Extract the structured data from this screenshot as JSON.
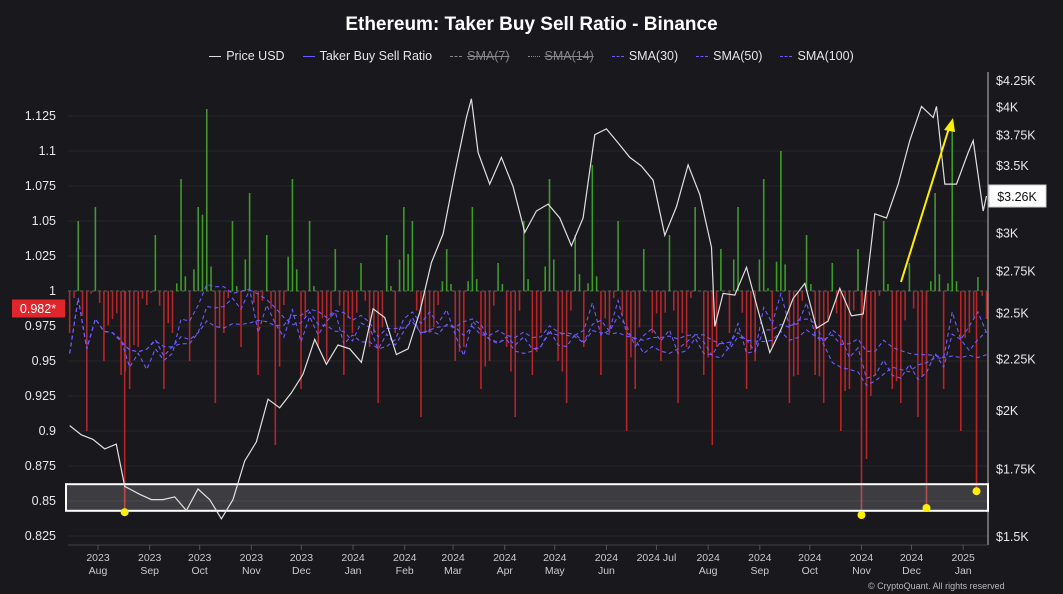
{
  "chart_data": {
    "type": "bar+line",
    "title": "Ethereum: Taker Buy Sell Ratio - Binance",
    "legend": [
      {
        "name": "Price USD",
        "color": "#dddddd",
        "style": "solid",
        "visible": true
      },
      {
        "name": "Taker Buy Sell Ratio",
        "color": "#6b5cff",
        "style": "solid",
        "visible": true
      },
      {
        "name": "SMA(7)",
        "color": "#888888",
        "style": "dashed",
        "visible": false
      },
      {
        "name": "SMA(14)",
        "color": "#888888",
        "style": "dotted",
        "visible": false
      },
      {
        "name": "SMA(30)",
        "color": "#6b5cff",
        "style": "dashed",
        "visible": true
      },
      {
        "name": "SMA(50)",
        "color": "#6b5cff",
        "style": "dashed",
        "visible": true
      },
      {
        "name": "SMA(100)",
        "color": "#6b5cff",
        "style": "dashed",
        "visible": true
      }
    ],
    "legend_placement": "top-center",
    "x_ticks": [
      {
        "date": "2023-08-01",
        "line1": "2023",
        "line2": "Aug"
      },
      {
        "date": "2023-09-01",
        "line1": "2023",
        "line2": "Sep"
      },
      {
        "date": "2023-10-01",
        "line1": "2023",
        "line2": "Oct"
      },
      {
        "date": "2023-11-01",
        "line1": "2023",
        "line2": "Nov"
      },
      {
        "date": "2023-12-01",
        "line1": "2023",
        "line2": "Dec"
      },
      {
        "date": "2024-01-01",
        "line1": "2024",
        "line2": "Jan"
      },
      {
        "date": "2024-02-01",
        "line1": "2024",
        "line2": "Feb"
      },
      {
        "date": "2024-03-01",
        "line1": "2024",
        "line2": "Mar"
      },
      {
        "date": "2024-04-01",
        "line1": "2024",
        "line2": "Apr"
      },
      {
        "date": "2024-05-01",
        "line1": "2024",
        "line2": "May"
      },
      {
        "date": "2024-06-01",
        "line1": "2024",
        "line2": "Jun"
      },
      {
        "date": "2024-07-01",
        "line1": "2024 Jul",
        "line2": ""
      },
      {
        "date": "2024-08-01",
        "line1": "2024",
        "line2": "Aug"
      },
      {
        "date": "2024-09-01",
        "line1": "2024",
        "line2": "Sep"
      },
      {
        "date": "2024-10-01",
        "line1": "2024",
        "line2": "Oct"
      },
      {
        "date": "2024-11-01",
        "line1": "2024",
        "line2": "Nov"
      },
      {
        "date": "2024-12-01",
        "line1": "2024",
        "line2": "Dec"
      },
      {
        "date": "2025-01-01",
        "line1": "2025",
        "line2": "Jan"
      }
    ],
    "x_range": [
      "2023-07-15",
      "2025-01-16"
    ],
    "left_axis": {
      "label": "",
      "ylim": [
        0.82,
        1.14
      ],
      "ticks": [
        "0.825",
        "0.85",
        "0.875",
        "0.9",
        "0.925",
        "0.95",
        "0.975",
        "1",
        "1.025",
        "1.05",
        "1.075",
        "1.1",
        "1.125"
      ],
      "baseline": 1
    },
    "right_axis": {
      "label": "",
      "scale": "log",
      "ylim_k": [
        1.5,
        4.3
      ],
      "ticks": [
        {
          "v": 1.5,
          "t": "$1.5K"
        },
        {
          "v": 1.75,
          "t": "$1.75K"
        },
        {
          "v": 2,
          "t": "$2K"
        },
        {
          "v": 2.25,
          "t": "$2.25K"
        },
        {
          "v": 2.5,
          "t": "$2.5K"
        },
        {
          "v": 2.75,
          "t": "$2.75K"
        },
        {
          "v": 3,
          "t": "$3K"
        },
        {
          "v": 3.25,
          "t": "$3.25K"
        },
        {
          "v": 3.5,
          "t": "$3.5K"
        },
        {
          "v": 3.75,
          "t": "$3.75K"
        },
        {
          "v": 4,
          "t": "$4K"
        },
        {
          "v": 4.25,
          "t": "$4.25K"
        }
      ]
    },
    "current_ratio_label": "0.982*",
    "current_price_label": "$3.26K",
    "grid": true,
    "colors": {
      "above": "#3f9a2a",
      "below": "#b3262a",
      "price": "#e0e0e0",
      "sma": "#6b5cff",
      "highlight": "#ffee00",
      "badge": "#e0262b"
    },
    "price_k": [
      [
        "2023-07-15",
        1.93
      ],
      [
        "2023-07-22",
        1.89
      ],
      [
        "2023-07-29",
        1.87
      ],
      [
        "2023-08-05",
        1.83
      ],
      [
        "2023-08-12",
        1.85
      ],
      [
        "2023-08-17",
        1.68
      ],
      [
        "2023-08-26",
        1.65
      ],
      [
        "2023-09-02",
        1.63
      ],
      [
        "2023-09-09",
        1.63
      ],
      [
        "2023-09-16",
        1.64
      ],
      [
        "2023-09-23",
        1.59
      ],
      [
        "2023-09-30",
        1.67
      ],
      [
        "2023-10-07",
        1.63
      ],
      [
        "2023-10-14",
        1.56
      ],
      [
        "2023-10-21",
        1.63
      ],
      [
        "2023-10-28",
        1.78
      ],
      [
        "2023-11-04",
        1.86
      ],
      [
        "2023-11-11",
        2.05
      ],
      [
        "2023-11-18",
        2.01
      ],
      [
        "2023-11-25",
        2.08
      ],
      [
        "2023-12-02",
        2.17
      ],
      [
        "2023-12-09",
        2.35
      ],
      [
        "2023-12-16",
        2.22
      ],
      [
        "2023-12-23",
        2.32
      ],
      [
        "2023-12-30",
        2.3
      ],
      [
        "2024-01-06",
        2.23
      ],
      [
        "2024-01-13",
        2.52
      ],
      [
        "2024-01-20",
        2.47
      ],
      [
        "2024-01-27",
        2.27
      ],
      [
        "2024-02-03",
        2.3
      ],
      [
        "2024-02-10",
        2.5
      ],
      [
        "2024-02-17",
        2.8
      ],
      [
        "2024-02-24",
        2.99
      ],
      [
        "2024-03-02",
        3.43
      ],
      [
        "2024-03-09",
        3.9
      ],
      [
        "2024-03-12",
        4.07
      ],
      [
        "2024-03-16",
        3.6
      ],
      [
        "2024-03-23",
        3.35
      ],
      [
        "2024-03-30",
        3.56
      ],
      [
        "2024-04-06",
        3.33
      ],
      [
        "2024-04-13",
        3.0
      ],
      [
        "2024-04-20",
        3.15
      ],
      [
        "2024-04-27",
        3.2
      ],
      [
        "2024-05-04",
        3.1
      ],
      [
        "2024-05-11",
        2.91
      ],
      [
        "2024-05-18",
        3.1
      ],
      [
        "2024-05-25",
        3.75
      ],
      [
        "2024-06-01",
        3.8
      ],
      [
        "2024-06-08",
        3.68
      ],
      [
        "2024-06-15",
        3.56
      ],
      [
        "2024-06-22",
        3.49
      ],
      [
        "2024-06-29",
        3.38
      ],
      [
        "2024-07-06",
        2.98
      ],
      [
        "2024-07-13",
        3.18
      ],
      [
        "2024-07-20",
        3.5
      ],
      [
        "2024-07-27",
        3.27
      ],
      [
        "2024-08-03",
        2.9
      ],
      [
        "2024-08-05",
        2.42
      ],
      [
        "2024-08-10",
        2.61
      ],
      [
        "2024-08-17",
        2.6
      ],
      [
        "2024-08-24",
        2.77
      ],
      [
        "2024-08-31",
        2.51
      ],
      [
        "2024-09-07",
        2.28
      ],
      [
        "2024-09-14",
        2.41
      ],
      [
        "2024-09-21",
        2.58
      ],
      [
        "2024-09-28",
        2.67
      ],
      [
        "2024-10-05",
        2.41
      ],
      [
        "2024-10-12",
        2.45
      ],
      [
        "2024-10-19",
        2.64
      ],
      [
        "2024-10-26",
        2.48
      ],
      [
        "2024-11-02",
        2.49
      ],
      [
        "2024-11-09",
        3.13
      ],
      [
        "2024-11-16",
        3.1
      ],
      [
        "2024-11-23",
        3.35
      ],
      [
        "2024-11-30",
        3.7
      ],
      [
        "2024-12-07",
        4.0
      ],
      [
        "2024-12-14",
        3.9
      ],
      [
        "2024-12-16",
        4.0
      ],
      [
        "2024-12-21",
        3.35
      ],
      [
        "2024-12-28",
        3.35
      ],
      [
        "2025-01-04",
        3.6
      ],
      [
        "2025-01-07",
        3.7
      ],
      [
        "2025-01-13",
        3.15
      ],
      [
        "2025-01-15",
        3.26
      ]
    ],
    "ratio_start": "2023-07-15",
    "ratio_end": "2025-01-15",
    "ratio": [
      0.97,
      1.05,
      0.9,
      1.06,
      0.95,
      0.98,
      0.94,
      0.93,
      0.96,
      0.99,
      1.04,
      0.93,
      0.97,
      1.08,
      0.95,
      1.06,
      1.13,
      0.92,
      0.97,
      1.05,
      0.96,
      1.07,
      0.94,
      1.04,
      0.89,
      0.99,
      1.08,
      0.93,
      1.05,
      0.96,
      0.95,
      1.03,
      0.94,
      0.97,
      1.02,
      0.96,
      0.92,
      1.04,
      0.97,
      1.06,
      1.05,
      0.91,
      0.97,
      0.99,
      1.03,
      0.95,
      0.96,
      1.06,
      0.93,
      0.95,
      1.02,
      0.96,
      0.91,
      1.05,
      0.94,
      0.97,
      1.08,
      0.95,
      0.92,
      1.04,
      0.96,
      1.09,
      0.94,
      0.97,
      1.05,
      0.9,
      0.93,
      1.03,
      0.97,
      0.95,
      1.04,
      0.92,
      0.96,
      1.06,
      0.94,
      0.89,
      1.03,
      0.97,
      1.06,
      0.93,
      0.95,
      1.08,
      0.96,
      1.1,
      0.92,
      0.94,
      1.04,
      0.94,
      0.92,
      1.02,
      0.9,
      0.93,
      1.03,
      0.88,
      0.94,
      1.05,
      0.93,
      0.92,
      1.02,
      0.91,
      0.95,
      1.07,
      0.93,
      1.12,
      0.9,
      0.97,
      1.01,
      0.98
    ],
    "highlighted_lows": [
      [
        "2023-08-17",
        0.842
      ],
      [
        "2024-11-01",
        0.84
      ],
      [
        "2024-12-10",
        0.845
      ],
      [
        "2025-01-09",
        0.857
      ]
    ],
    "highlight_band": [
      0.843,
      0.862
    ]
  },
  "watermark": "© CryptoQuant. All rights reserved"
}
